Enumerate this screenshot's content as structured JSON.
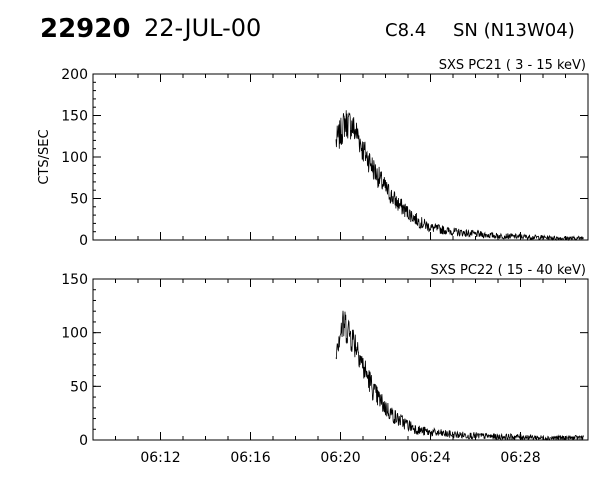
{
  "header": {
    "event_id": "22920",
    "date": "22-JUL-00",
    "flare_class": "C8.4",
    "location": "SN (N13W04)"
  },
  "chart_data": [
    {
      "type": "line",
      "title": "SXS PC21  ( 3 - 15 keV)",
      "ylabel": "CTS/SEC",
      "xlabel": "",
      "xlim": [
        "06:09",
        "06:31"
      ],
      "ylim": [
        0,
        200
      ],
      "yticks": [
        0,
        50,
        100,
        150,
        200
      ],
      "xticks": [
        "06:12",
        "06:16",
        "06:20",
        "06:24",
        "06:28"
      ],
      "x": [
        "06:19.8",
        "06:20.0",
        "06:20.2",
        "06:20.5",
        "06:20.8",
        "06:21.0",
        "06:21.3",
        "06:21.5",
        "06:22.0",
        "06:22.5",
        "06:23.0",
        "06:23.5",
        "06:24.0",
        "06:25.0",
        "06:26.0",
        "06:27.0",
        "06:28.0",
        "06:29.0",
        "06:30.0",
        "06:30.5",
        "06:30.8"
      ],
      "series": [
        {
          "values": [
            118,
            128,
            142,
            138,
            125,
            108,
            95,
            84,
            62,
            45,
            33,
            22,
            15,
            10,
            7,
            5,
            4,
            3,
            2,
            2,
            3
          ]
        }
      ]
    },
    {
      "type": "line",
      "title": "SXS PC22  ( 15 - 40 keV)",
      "ylabel": "",
      "xlabel": "",
      "xlim": [
        "06:09",
        "06:31"
      ],
      "ylim": [
        0,
        150
      ],
      "yticks": [
        0,
        50,
        100,
        150
      ],
      "xticks": [
        "06:12",
        "06:16",
        "06:20",
        "06:24",
        "06:28"
      ],
      "x": [
        "06:19.8",
        "06:20.0",
        "06:20.2",
        "06:20.5",
        "06:20.8",
        "06:21.0",
        "06:21.3",
        "06:21.5",
        "06:22.0",
        "06:22.5",
        "06:23.0",
        "06:23.5",
        "06:24.0",
        "06:25.0",
        "06:26.0",
        "06:27.0",
        "06:28.0",
        "06:29.0",
        "06:30.0",
        "06:30.5",
        "06:30.8"
      ],
      "series": [
        {
          "values": [
            88,
            102,
            108,
            96,
            85,
            68,
            55,
            44,
            30,
            20,
            14,
            9,
            7,
            5,
            4,
            3,
            3,
            2,
            2,
            2,
            3
          ]
        }
      ]
    }
  ]
}
